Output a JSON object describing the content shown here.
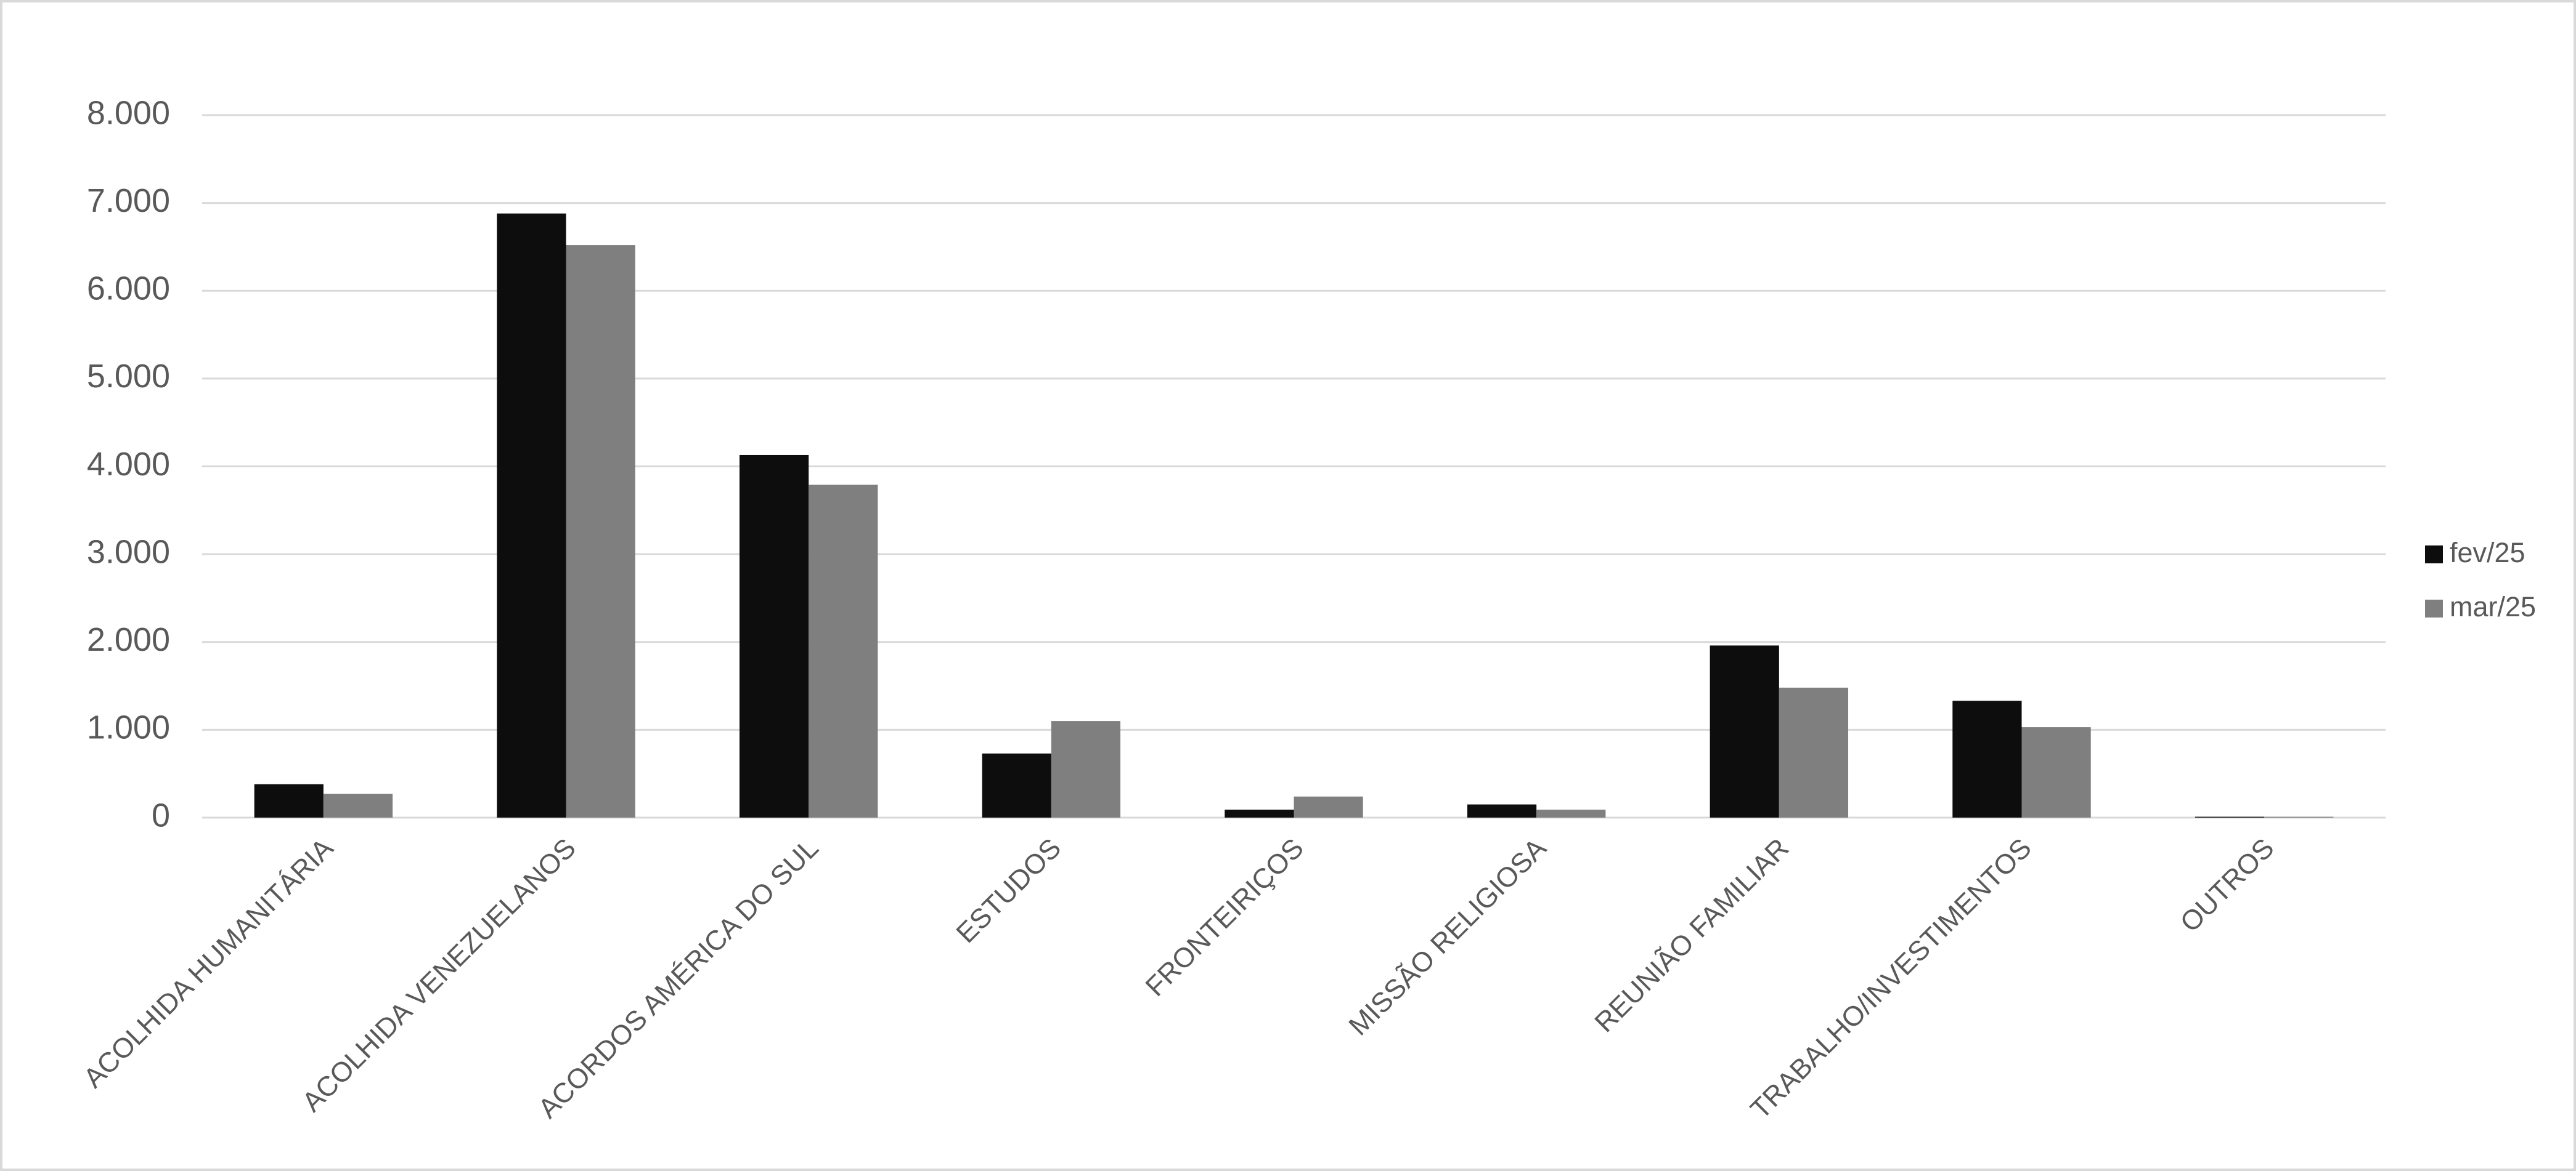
{
  "chart_data": {
    "type": "bar",
    "categories": [
      "ACOLHIDA HUMANITÁRIA",
      "ACOLHIDA VENEZUELANOS",
      "ACORDOS AMÉRICA DO SUL",
      "ESTUDOS",
      "FRONTEIRIÇOS",
      "MISSÃO RELIGIOSA",
      "REUNIÃO FAMILIAR",
      "TRABALHO/INVESTIMENTOS",
      "OUTROS"
    ],
    "series": [
      {
        "name": "fev/25",
        "color": "#0d0d0d",
        "values": [
          380,
          6880,
          4130,
          730,
          90,
          150,
          1960,
          1330,
          10
        ]
      },
      {
        "name": "mar/25",
        "color": "#7f7f7f",
        "values": [
          270,
          6520,
          3790,
          1100,
          240,
          90,
          1480,
          1030,
          10
        ]
      }
    ],
    "ylim": [
      0,
      8000
    ],
    "yticks": [
      0,
      {
        "value": 1000,
        "label": "1.000"
      },
      {
        "value": 2000,
        "label": "2.000"
      },
      {
        "value": 3000,
        "label": "3.000"
      },
      {
        "value": 4000,
        "label": "4.000"
      },
      {
        "value": 5000,
        "label": "5.000"
      },
      {
        "value": 6000,
        "label": "6.000"
      },
      {
        "value": 7000,
        "label": "7.000"
      },
      {
        "value": 8000,
        "label": "8.000"
      }
    ],
    "grid": true,
    "legend": "right"
  }
}
